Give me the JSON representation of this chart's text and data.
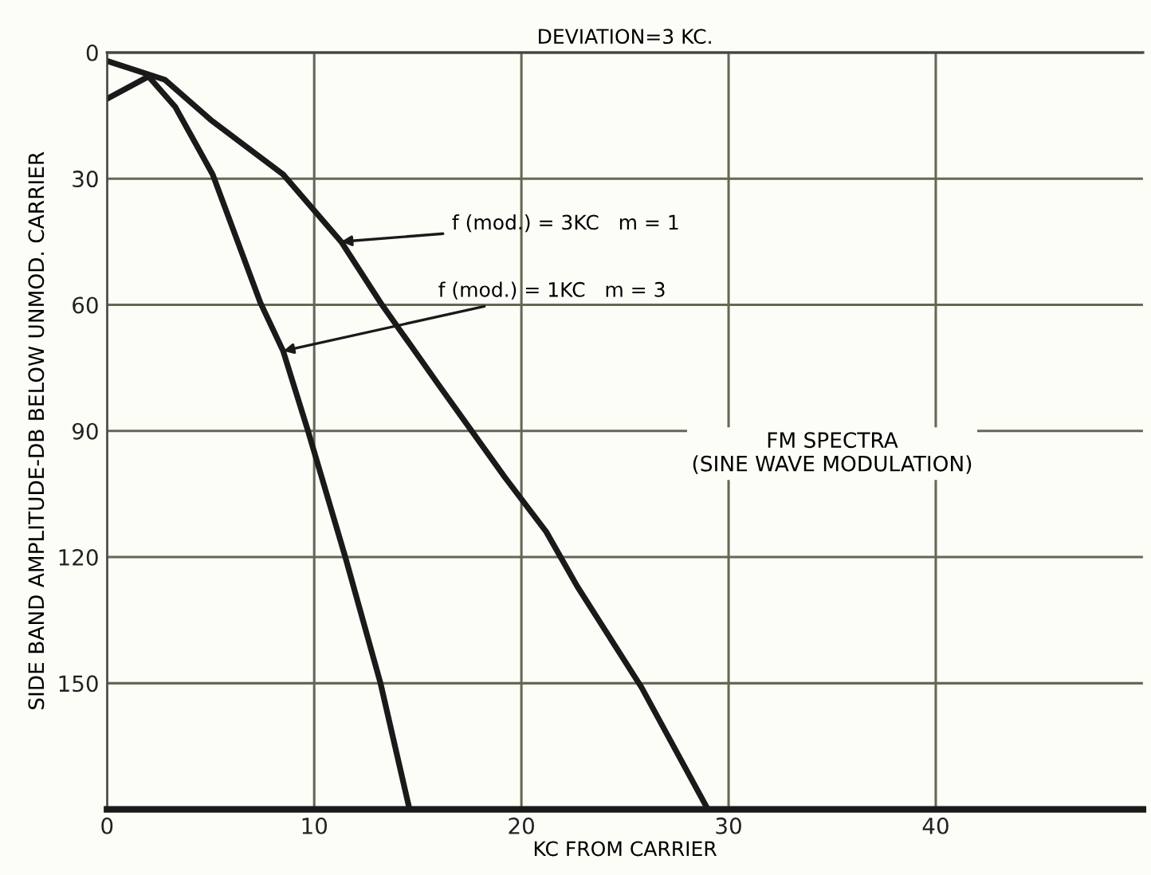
{
  "chart_data": {
    "type": "line",
    "title": "DEVIATION=3 KC.",
    "xlabel": "KC FROM CARRIER",
    "ylabel": "SIDE BAND AMPLITUDE-DB BELOW UNMOD. CARRIER",
    "series": [
      {
        "color": "#1a1a1a",
        "x": [
          0,
          2.8,
          5,
          8.5,
          11.3,
          13.2,
          16,
          19.2,
          21.2,
          22.7,
          25.8,
          29
        ],
        "values": [
          2,
          6.5,
          16,
          29,
          45,
          59.5,
          79,
          101,
          114,
          127,
          151,
          180
        ]
      },
      {
        "color": "#1a1a1a",
        "x": [
          0,
          2,
          3.3,
          5.1,
          7.4,
          8.5,
          9.7,
          10.3,
          11.5,
          13.2,
          14.6
        ],
        "values": [
          11,
          5.7,
          13,
          29,
          59.5,
          71,
          90,
          100,
          120,
          150,
          180
        ]
      }
    ],
    "annotations": [
      {
        "text": "f (mod.) = 3KC   m = 1",
        "x": 11.3,
        "y": 45
      },
      {
        "text": "f (mod.) = 1KC   m = 3",
        "x": 8.5,
        "y": 71
      },
      "FM SPECTRA\n(SINE WAVE MODULATION)"
    ],
    "xlim": [
      0,
      50
    ],
    "xticks": [
      0,
      10,
      20,
      30,
      40
    ],
    "ylim": [
      180,
      0
    ],
    "yticks": [
      0,
      30,
      60,
      90,
      120,
      150
    ],
    "grid": true,
    "line_style": "solid",
    "marker": "none"
  }
}
